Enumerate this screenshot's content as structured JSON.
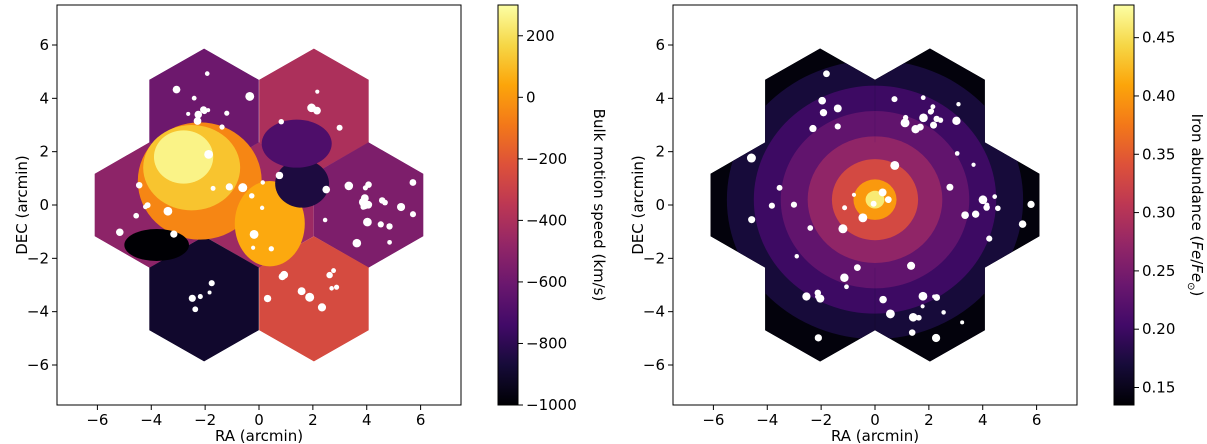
{
  "chart_data": [
    {
      "type": "heatmap",
      "title": "",
      "xlabel": "RA (arcmin)",
      "ylabel": "DEC (arcmin)",
      "xlim": [
        -7.5,
        7.5
      ],
      "ylim": [
        -7.5,
        7.5
      ],
      "xticks": [
        -6,
        -4,
        -2,
        0,
        2,
        4,
        6
      ],
      "yticks": [
        -6,
        -4,
        -2,
        0,
        2,
        4,
        6
      ],
      "xtick_labels": [
        "−6",
        "−4",
        "−2",
        "0",
        "2",
        "4",
        "6"
      ],
      "ytick_labels": [
        "−6",
        "−4",
        "−2",
        "0",
        "2",
        "4",
        "6"
      ],
      "colorbar": {
        "label": "Bulk motion speed (km/s)",
        "min": -1000,
        "max": 300,
        "ticks": [
          200,
          0,
          -200,
          -400,
          -600,
          -800,
          -1000
        ],
        "tick_labels": [
          "200",
          "0",
          "−200",
          "−400",
          "−600",
          "−800",
          "−1000"
        ],
        "colormap": "inferno"
      },
      "field_shape": "seven hexagonal pointings (flower mosaic)",
      "regions": [
        {
          "name": "north-west hexagon",
          "value": -600
        },
        {
          "name": "north-east hexagon",
          "value": -400
        },
        {
          "name": "east hexagon",
          "value": -550
        },
        {
          "name": "west hexagon",
          "value": -500
        },
        {
          "name": "south-west hexagon",
          "value": -900
        },
        {
          "name": "south-east hexagon",
          "value": -250
        },
        {
          "name": "central swirl arm (north-west of core)",
          "value": 200
        },
        {
          "name": "inner spiral arm",
          "value": 0
        },
        {
          "name": "core depression (east of center)",
          "value": -900
        },
        {
          "name": "south-west pocket",
          "value": -1000
        }
      ]
    },
    {
      "type": "heatmap",
      "title": "",
      "xlabel": "RA (arcmin)",
      "ylabel": "DEC (arcmin)",
      "xlim": [
        -7.5,
        7.5
      ],
      "ylim": [
        -7.5,
        7.5
      ],
      "xticks": [
        -6,
        -4,
        -2,
        0,
        2,
        4,
        6
      ],
      "yticks": [
        -6,
        -4,
        -2,
        0,
        2,
        4,
        6
      ],
      "xtick_labels": [
        "−6",
        "−4",
        "−2",
        "0",
        "2",
        "4",
        "6"
      ],
      "ytick_labels": [
        "−6",
        "−4",
        "−2",
        "0",
        "2",
        "4",
        "6"
      ],
      "colorbar": {
        "label": "Iron abundance (Fe/Fe⊙)",
        "label_main": "Iron abundance (",
        "label_italic": "Fe",
        "label_sep": "/",
        "label_italic2": "Fe",
        "label_sub": "⊙",
        "label_end": ")",
        "min": 0.135,
        "max": 0.478,
        "ticks": [
          0.45,
          0.4,
          0.35,
          0.3,
          0.25,
          0.2,
          0.15
        ],
        "tick_labels": [
          "0.45",
          "0.40",
          "0.35",
          "0.30",
          "0.25",
          "0.20",
          "0.15"
        ],
        "colormap": "inferno"
      },
      "field_shape": "seven hexagonal pointings (flower mosaic)",
      "radial_profile": [
        {
          "r_arcmin": 0.0,
          "value": 0.46
        },
        {
          "r_arcmin": 0.8,
          "value": 0.4
        },
        {
          "r_arcmin": 1.6,
          "value": 0.33
        },
        {
          "r_arcmin": 2.5,
          "value": 0.27
        },
        {
          "r_arcmin": 3.5,
          "value": 0.23
        },
        {
          "r_arcmin": 4.5,
          "value": 0.2
        },
        {
          "r_arcmin": 5.5,
          "value": 0.17
        },
        {
          "r_arcmin": 7.0,
          "value": 0.14
        }
      ]
    }
  ]
}
